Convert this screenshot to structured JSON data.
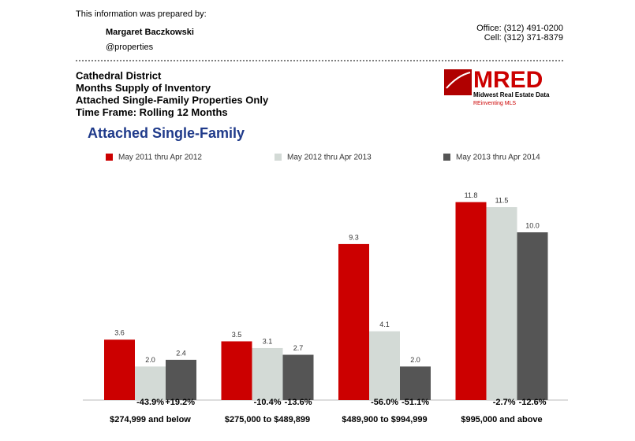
{
  "header": {
    "prepared_by": "This information was prepared by:",
    "agent_name": "Margaret Baczkowski",
    "company": "@properties",
    "office": "Office: (312) 491-0200",
    "cell": "Cell: (312) 371-8379"
  },
  "report": {
    "lines": [
      "Cathedral District",
      "Months Supply of Inventory",
      "Attached Single-Family Properties Only",
      "Time Frame: Rolling 12 Months"
    ]
  },
  "logo": {
    "name": "MRED",
    "tagline": "Midwest Real Estate Data",
    "slogan": "REinventing MLS"
  },
  "chart_data": {
    "type": "bar",
    "title": "Attached Single-Family",
    "categories": [
      "$274,999 and below",
      "$275,000 to $489,899",
      "$489,900 to $994,999",
      "$995,000 and above"
    ],
    "series": [
      {
        "name": "May 2011 thru Apr 2012",
        "color": "#cc0000",
        "values": [
          3.6,
          3.5,
          9.3,
          11.8
        ],
        "value_labels": [
          "3.6",
          "3.5",
          "9.3",
          "11.8"
        ]
      },
      {
        "name": "May 2012 thru Apr 2013",
        "color": "#d3dad6",
        "values": [
          2,
          3.1,
          4.1,
          11.5
        ],
        "value_labels": [
          "2.0",
          "3.1",
          "4.1",
          "11.5"
        ]
      },
      {
        "name": "May 2013 thru Apr 2014",
        "color": "#555555",
        "values": [
          2.4,
          2.7,
          2,
          10
        ],
        "value_labels": [
          "2.4",
          "2.7",
          "2.0",
          "10.0"
        ]
      }
    ],
    "annotations": [
      [
        "-43.9%",
        "+19.2%"
      ],
      [
        "-10.4%",
        "-13.6%"
      ],
      [
        "-56.0%",
        "-51.1%"
      ],
      [
        "-2.7%",
        "-12.6%"
      ]
    ],
    "legend": "top"
  }
}
